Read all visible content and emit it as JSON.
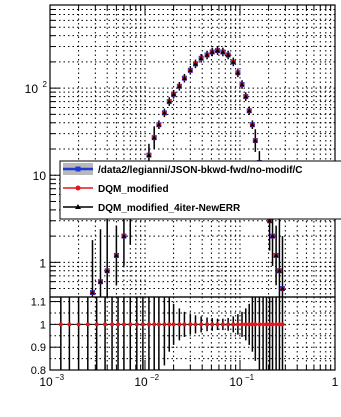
{
  "chart_data": [
    {
      "type": "line",
      "panel": "top",
      "xscale": "log",
      "yscale": "log",
      "xlim": [
        0.001,
        1
      ],
      "ylim": [
        0.4,
        900
      ],
      "grid": true,
      "y_ticks": [
        {
          "value": 1,
          "label": "1"
        },
        {
          "value": 10,
          "label": "10"
        },
        {
          "value": 100,
          "label": "10",
          "exp": "2"
        }
      ],
      "legend_position": "right",
      "series": [
        {
          "name": "/data2/legianni/JSON-bkwd-fwd/no-modif/C",
          "color": "#1f3bd6",
          "x": [
            0.0028,
            0.0034,
            0.004,
            0.005,
            0.006,
            0.007,
            0.008,
            0.0095,
            0.011,
            0.0125,
            0.014,
            0.016,
            0.018,
            0.02,
            0.023,
            0.026,
            0.03,
            0.034,
            0.039,
            0.045,
            0.051,
            0.058,
            0.066,
            0.075,
            0.085,
            0.095,
            0.105,
            0.115,
            0.125,
            0.135,
            0.145,
            0.16,
            0.175,
            0.19,
            0.205,
            0.22,
            0.24,
            0.26,
            0.28
          ],
          "y": [
            0.45,
            0.6,
            0.8,
            1.2,
            2,
            3.5,
            6,
            10,
            17,
            27,
            38,
            52,
            70,
            85,
            105,
            130,
            160,
            190,
            220,
            240,
            260,
            270,
            260,
            240,
            200,
            150,
            110,
            80,
            55,
            38,
            25,
            14,
            8,
            5,
            3,
            2,
            1.2,
            0.8,
            0.5
          ]
        },
        {
          "name": "DQM_modified",
          "color": "#e8141e",
          "x": [
            0.0028,
            0.0034,
            0.004,
            0.005,
            0.006,
            0.007,
            0.008,
            0.0095,
            0.011,
            0.0125,
            0.014,
            0.016,
            0.018,
            0.02,
            0.023,
            0.026,
            0.03,
            0.034,
            0.039,
            0.045,
            0.051,
            0.058,
            0.066,
            0.075,
            0.085,
            0.095,
            0.105,
            0.115,
            0.125,
            0.135,
            0.145,
            0.16,
            0.175,
            0.19,
            0.205,
            0.22,
            0.24,
            0.26,
            0.28
          ],
          "y": [
            0.45,
            0.6,
            0.8,
            1.2,
            2,
            3.5,
            6,
            10,
            17,
            27,
            38,
            52,
            70,
            85,
            105,
            130,
            160,
            190,
            220,
            240,
            260,
            270,
            260,
            240,
            200,
            150,
            110,
            80,
            55,
            38,
            25,
            14,
            8,
            5,
            3,
            2,
            1.2,
            0.8,
            0.5
          ]
        },
        {
          "name": "DQM_modified_4iter-NewERR",
          "color": "#000000",
          "x": [
            0.0028,
            0.0034,
            0.004,
            0.005,
            0.006,
            0.007,
            0.008,
            0.0095,
            0.011,
            0.0125,
            0.014,
            0.016,
            0.018,
            0.02,
            0.023,
            0.026,
            0.03,
            0.034,
            0.039,
            0.045,
            0.051,
            0.058,
            0.066,
            0.075,
            0.085,
            0.095,
            0.105,
            0.115,
            0.125,
            0.135,
            0.145,
            0.16,
            0.175,
            0.19,
            0.205,
            0.22,
            0.24,
            0.26,
            0.28
          ],
          "y": [
            0.45,
            0.6,
            0.8,
            1.2,
            2,
            3.5,
            6,
            10,
            17,
            27,
            38,
            52,
            70,
            85,
            105,
            130,
            160,
            190,
            220,
            240,
            260,
            270,
            260,
            240,
            200,
            150,
            110,
            80,
            55,
            38,
            25,
            14,
            8,
            5,
            3,
            2,
            1.2,
            0.8,
            0.5
          ]
        }
      ]
    },
    {
      "type": "scatter",
      "panel": "ratio",
      "xscale": "log",
      "xlim": [
        0.001,
        1
      ],
      "ylim": [
        0.8,
        1.12
      ],
      "grid": true,
      "y_ticks": [
        {
          "value": 0.8,
          "label": "0.8"
        },
        {
          "value": 0.9,
          "label": "0.9"
        },
        {
          "value": 1.0,
          "label": "1"
        },
        {
          "value": 1.1,
          "label": "1.1"
        }
      ],
      "x_ticks": [
        {
          "value": 0.001,
          "label": "10",
          "exp": "−3"
        },
        {
          "value": 0.01,
          "label": "10",
          "exp": "−2"
        },
        {
          "value": 0.1,
          "label": "10",
          "exp": "−1"
        },
        {
          "value": 1,
          "label": "1"
        }
      ],
      "ratio": {
        "x": [
          0.0013,
          0.0016,
          0.002,
          0.0025,
          0.0031,
          0.0038,
          0.0045,
          0.0052,
          0.006,
          0.007,
          0.0082,
          0.0095,
          0.011,
          0.0125,
          0.014,
          0.016,
          0.018,
          0.02,
          0.023,
          0.026,
          0.03,
          0.034,
          0.039,
          0.045,
          0.051,
          0.058,
          0.066,
          0.075,
          0.085,
          0.095,
          0.105,
          0.115,
          0.125,
          0.135,
          0.145,
          0.16,
          0.175,
          0.19,
          0.205,
          0.22,
          0.24,
          0.26,
          0.28
        ],
        "y": [
          1,
          1,
          1,
          1,
          1,
          1,
          1,
          1,
          1,
          1,
          1,
          1,
          1,
          1,
          1,
          1,
          1,
          1,
          1,
          1,
          1,
          1,
          1,
          1,
          1,
          1,
          1,
          1,
          1,
          1,
          1,
          1,
          1,
          1,
          1,
          1,
          1,
          1,
          1,
          1,
          1,
          1,
          1
        ],
        "err": [
          0.3,
          0.3,
          0.3,
          0.3,
          0.3,
          0.3,
          0.3,
          0.3,
          0.3,
          0.3,
          0.3,
          0.3,
          0.3,
          0.3,
          0.25,
          0.18,
          0.12,
          0.09,
          0.07,
          0.055,
          0.045,
          0.04,
          0.035,
          0.03,
          0.028,
          0.025,
          0.025,
          0.028,
          0.035,
          0.045,
          0.055,
          0.07,
          0.09,
          0.12,
          0.16,
          0.3,
          0.3,
          0.3,
          0.3,
          0.3,
          0.3,
          0.3,
          0.3
        ]
      }
    }
  ]
}
